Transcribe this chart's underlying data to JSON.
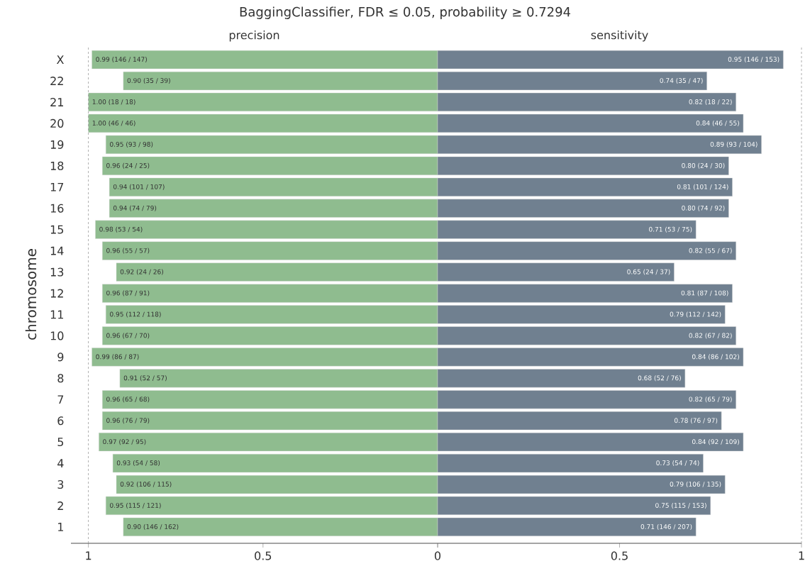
{
  "chart_data": [
    {
      "type": "bar",
      "orientation": "horizontal",
      "title": "BaggingClassifier, FDR ≤ 0.05, probability ≥ 0.7294",
      "subtitle": "precision",
      "ylabel": "chromosome",
      "categories": [
        "X",
        "22",
        "21",
        "20",
        "19",
        "18",
        "17",
        "16",
        "15",
        "14",
        "13",
        "12",
        "11",
        "10",
        "9",
        "8",
        "7",
        "6",
        "5",
        "4",
        "3",
        "2",
        "1"
      ],
      "values": [
        0.99,
        0.9,
        1.0,
        1.0,
        0.95,
        0.96,
        0.94,
        0.94,
        0.98,
        0.96,
        0.92,
        0.96,
        0.95,
        0.96,
        0.99,
        0.91,
        0.96,
        0.96,
        0.97,
        0.93,
        0.92,
        0.95,
        0.9
      ],
      "value_labels": [
        "0.99 (146 / 147)",
        "0.90 (35 / 39)",
        "1.00 (18 / 18)",
        "1.00 (46 / 46)",
        "0.95 (93 / 98)",
        "0.96 (24 / 25)",
        "0.94 (101 / 107)",
        "0.94 (74 / 79)",
        "0.98 (53 / 54)",
        "0.96 (55 / 57)",
        "0.92 (24 / 26)",
        "0.96 (87 / 91)",
        "0.95 (112 / 118)",
        "0.96 (67 / 70)",
        "0.99 (86 / 87)",
        "0.91 (52 / 57)",
        "0.96 (65 / 68)",
        "0.96 (76 / 79)",
        "0.97 (92 / 95)",
        "0.93 (54 / 58)",
        "0.92 (106 / 115)",
        "0.95 (115 / 121)",
        "0.90 (146 / 162)"
      ],
      "color": "#8fbc8f",
      "xlim": [
        1.05,
        0
      ],
      "xticks": [
        1,
        0.5,
        0
      ],
      "ref_lines": [
        {
          "axis": "x",
          "value": 1
        }
      ]
    },
    {
      "type": "bar",
      "orientation": "horizontal",
      "subtitle": "sensitivity",
      "tick_labels": "x",
      "categories": [
        null,
        null,
        null,
        null,
        null,
        null,
        null,
        null,
        null,
        null,
        null,
        null,
        null,
        null,
        null,
        null,
        null,
        null,
        null,
        null,
        null,
        null,
        null
      ],
      "values": [
        0.95,
        0.74,
        0.82,
        0.84,
        0.89,
        0.8,
        0.81,
        0.8,
        0.71,
        0.82,
        0.65,
        0.81,
        0.79,
        0.82,
        0.84,
        0.68,
        0.82,
        0.78,
        0.84,
        0.73,
        0.79,
        0.75,
        0.71
      ],
      "value_labels": [
        "0.95 (146 / 153)",
        "0.74 (35 / 47)",
        "0.82 (18 / 22)",
        "0.84 (46 / 55)",
        "0.89 (93 / 104)",
        "0.80 (24 / 30)",
        "0.81 (101 / 124)",
        "0.80 (74 / 92)",
        "0.71 (53 / 75)",
        "0.82 (55 / 67)",
        "0.65 (24 / 37)",
        "0.81 (87 / 108)",
        "0.79 (112 / 142)",
        "0.82 (67 / 82)",
        "0.84 (86 / 102)",
        "0.68 (52 / 76)",
        "0.82 (65 / 79)",
        "0.78 (76 / 97)",
        "0.84 (92 / 109)",
        "0.73 (54 / 74)",
        "0.79 (106 / 135)",
        "0.75 (115 / 153)",
        "0.71 (146 / 207)"
      ],
      "color": "#708090",
      "xlim": [
        0,
        1
      ],
      "xticks": [
        {
          "value": 0,
          "label": null
        },
        0.5,
        1
      ],
      "ref_lines": [
        {
          "axis": "x",
          "value": 1
        }
      ]
    }
  ]
}
